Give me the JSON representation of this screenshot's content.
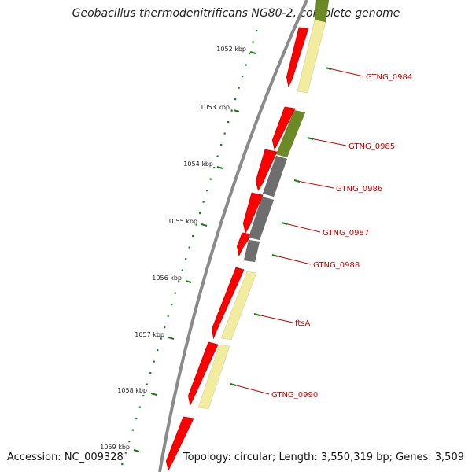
{
  "header": {
    "title": "Geobacillus thermodenitrificans NG80-2, complete genome"
  },
  "footer": {
    "accession": "Accession: NC_009328",
    "stats": "Topology: circular; Length: 3,550,319 bp; Genes: 3,509"
  },
  "colors": {
    "backbone": "#8a8a8a",
    "cds": "#ff0000",
    "tick": "#1a7a1a",
    "label": "#cc0000",
    "category_yellow": "#f2ec9e",
    "category_olive": "#6b8a25",
    "category_gray": "#6e6e6e"
  },
  "scale_labels": [
    "1052 kbp",
    "1053 kbp",
    "1054 kbp",
    "1055 kbp",
    "1056 kbp",
    "1057 kbp",
    "1058 kbp",
    "1059 kbp"
  ],
  "gene_labels": [
    "GTNG_0984",
    "GTNG_0985",
    "GTNG_0986",
    "GTNG_0987",
    "GTNG_0988",
    "ftsA",
    "GTNG_0990"
  ]
}
